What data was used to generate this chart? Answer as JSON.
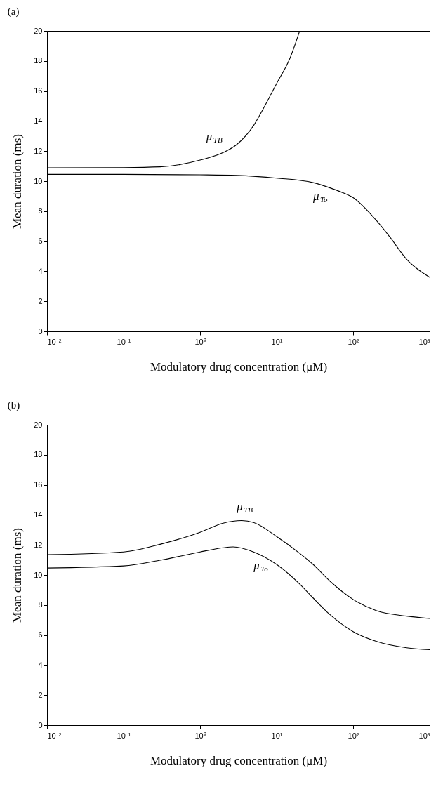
{
  "chart_data": [
    {
      "type": "line",
      "title": "(a)",
      "xlabel": "Modulatory drug concentration (μM)",
      "ylabel": "Mean duration (ms)",
      "log": "x",
      "grid": false,
      "xlim": [
        0.01,
        1000
      ],
      "xticks": [
        {
          "value": 0.01,
          "label": "10⁻²"
        },
        {
          "value": 0.1,
          "label": "10⁻¹"
        },
        {
          "value": 1,
          "label": "10⁰"
        },
        {
          "value": 10,
          "label": "10¹"
        },
        {
          "value": 100,
          "label": "10²"
        },
        {
          "value": 1000,
          "label": "10³"
        }
      ],
      "ylim": [
        0,
        20
      ],
      "yticks": [
        0,
        2,
        4,
        6,
        8,
        10,
        12,
        14,
        16,
        18,
        20
      ],
      "series": [
        {
          "name": "μ$_{TB}$",
          "color": "#000000",
          "x": [
            0.01,
            0.1,
            0.3,
            1,
            2,
            3,
            5,
            7,
            10,
            15,
            20
          ],
          "values": [
            10.88,
            10.9,
            10.95,
            11.4,
            11.9,
            12.43,
            13.7,
            15.0,
            16.5,
            18.2,
            20
          ]
        },
        {
          "name": "μ$_{To}$",
          "color": "#000000",
          "x": [
            0.01,
            0.1,
            1,
            3,
            10,
            30,
            50,
            70,
            100,
            200,
            300,
            500,
            1000
          ],
          "values": [
            10.45,
            10.45,
            10.42,
            10.38,
            10.2,
            9.9,
            9.55,
            9.27,
            8.9,
            7.4,
            6.3,
            4.8,
            3.6
          ]
        }
      ]
    },
    {
      "type": "line",
      "title": "(b)",
      "xlabel": "Modulatory drug concentration (μM)",
      "ylabel": "Mean duration (ms)",
      "log": "x",
      "grid": false,
      "xlim": [
        0.01,
        1000
      ],
      "xticks": [
        {
          "value": 0.01,
          "label": "10⁻²"
        },
        {
          "value": 0.1,
          "label": "10⁻¹"
        },
        {
          "value": 1,
          "label": "10⁰"
        },
        {
          "value": 10,
          "label": "10¹"
        },
        {
          "value": 100,
          "label": "10²"
        },
        {
          "value": 1000,
          "label": "10³"
        }
      ],
      "ylim": [
        0,
        20
      ],
      "yticks": [
        0,
        2,
        4,
        6,
        8,
        10,
        12,
        14,
        16,
        18,
        20
      ],
      "series": [
        {
          "name": "μ$_{TB}$",
          "color": "#000000",
          "x": [
            0.01,
            0.1,
            0.3,
            1,
            2,
            3.5,
            5,
            10,
            20,
            30,
            50,
            100,
            200,
            500,
            1000
          ],
          "values": [
            11.35,
            11.53,
            12.04,
            12.84,
            13.45,
            13.62,
            13.49,
            12.56,
            11.44,
            10.7,
            9.58,
            8.37,
            7.63,
            7.26,
            7.1
          ]
        },
        {
          "name": "μ$_{To}$",
          "color": "#000000",
          "x": [
            0.01,
            0.1,
            0.3,
            1,
            2,
            2.7,
            5,
            10,
            20,
            30,
            50,
            100,
            200,
            500,
            1000
          ],
          "values": [
            10.46,
            10.6,
            10.98,
            11.53,
            11.81,
            11.87,
            11.53,
            10.7,
            9.4,
            8.47,
            7.35,
            6.23,
            5.58,
            5.15,
            5.02
          ]
        }
      ]
    }
  ]
}
